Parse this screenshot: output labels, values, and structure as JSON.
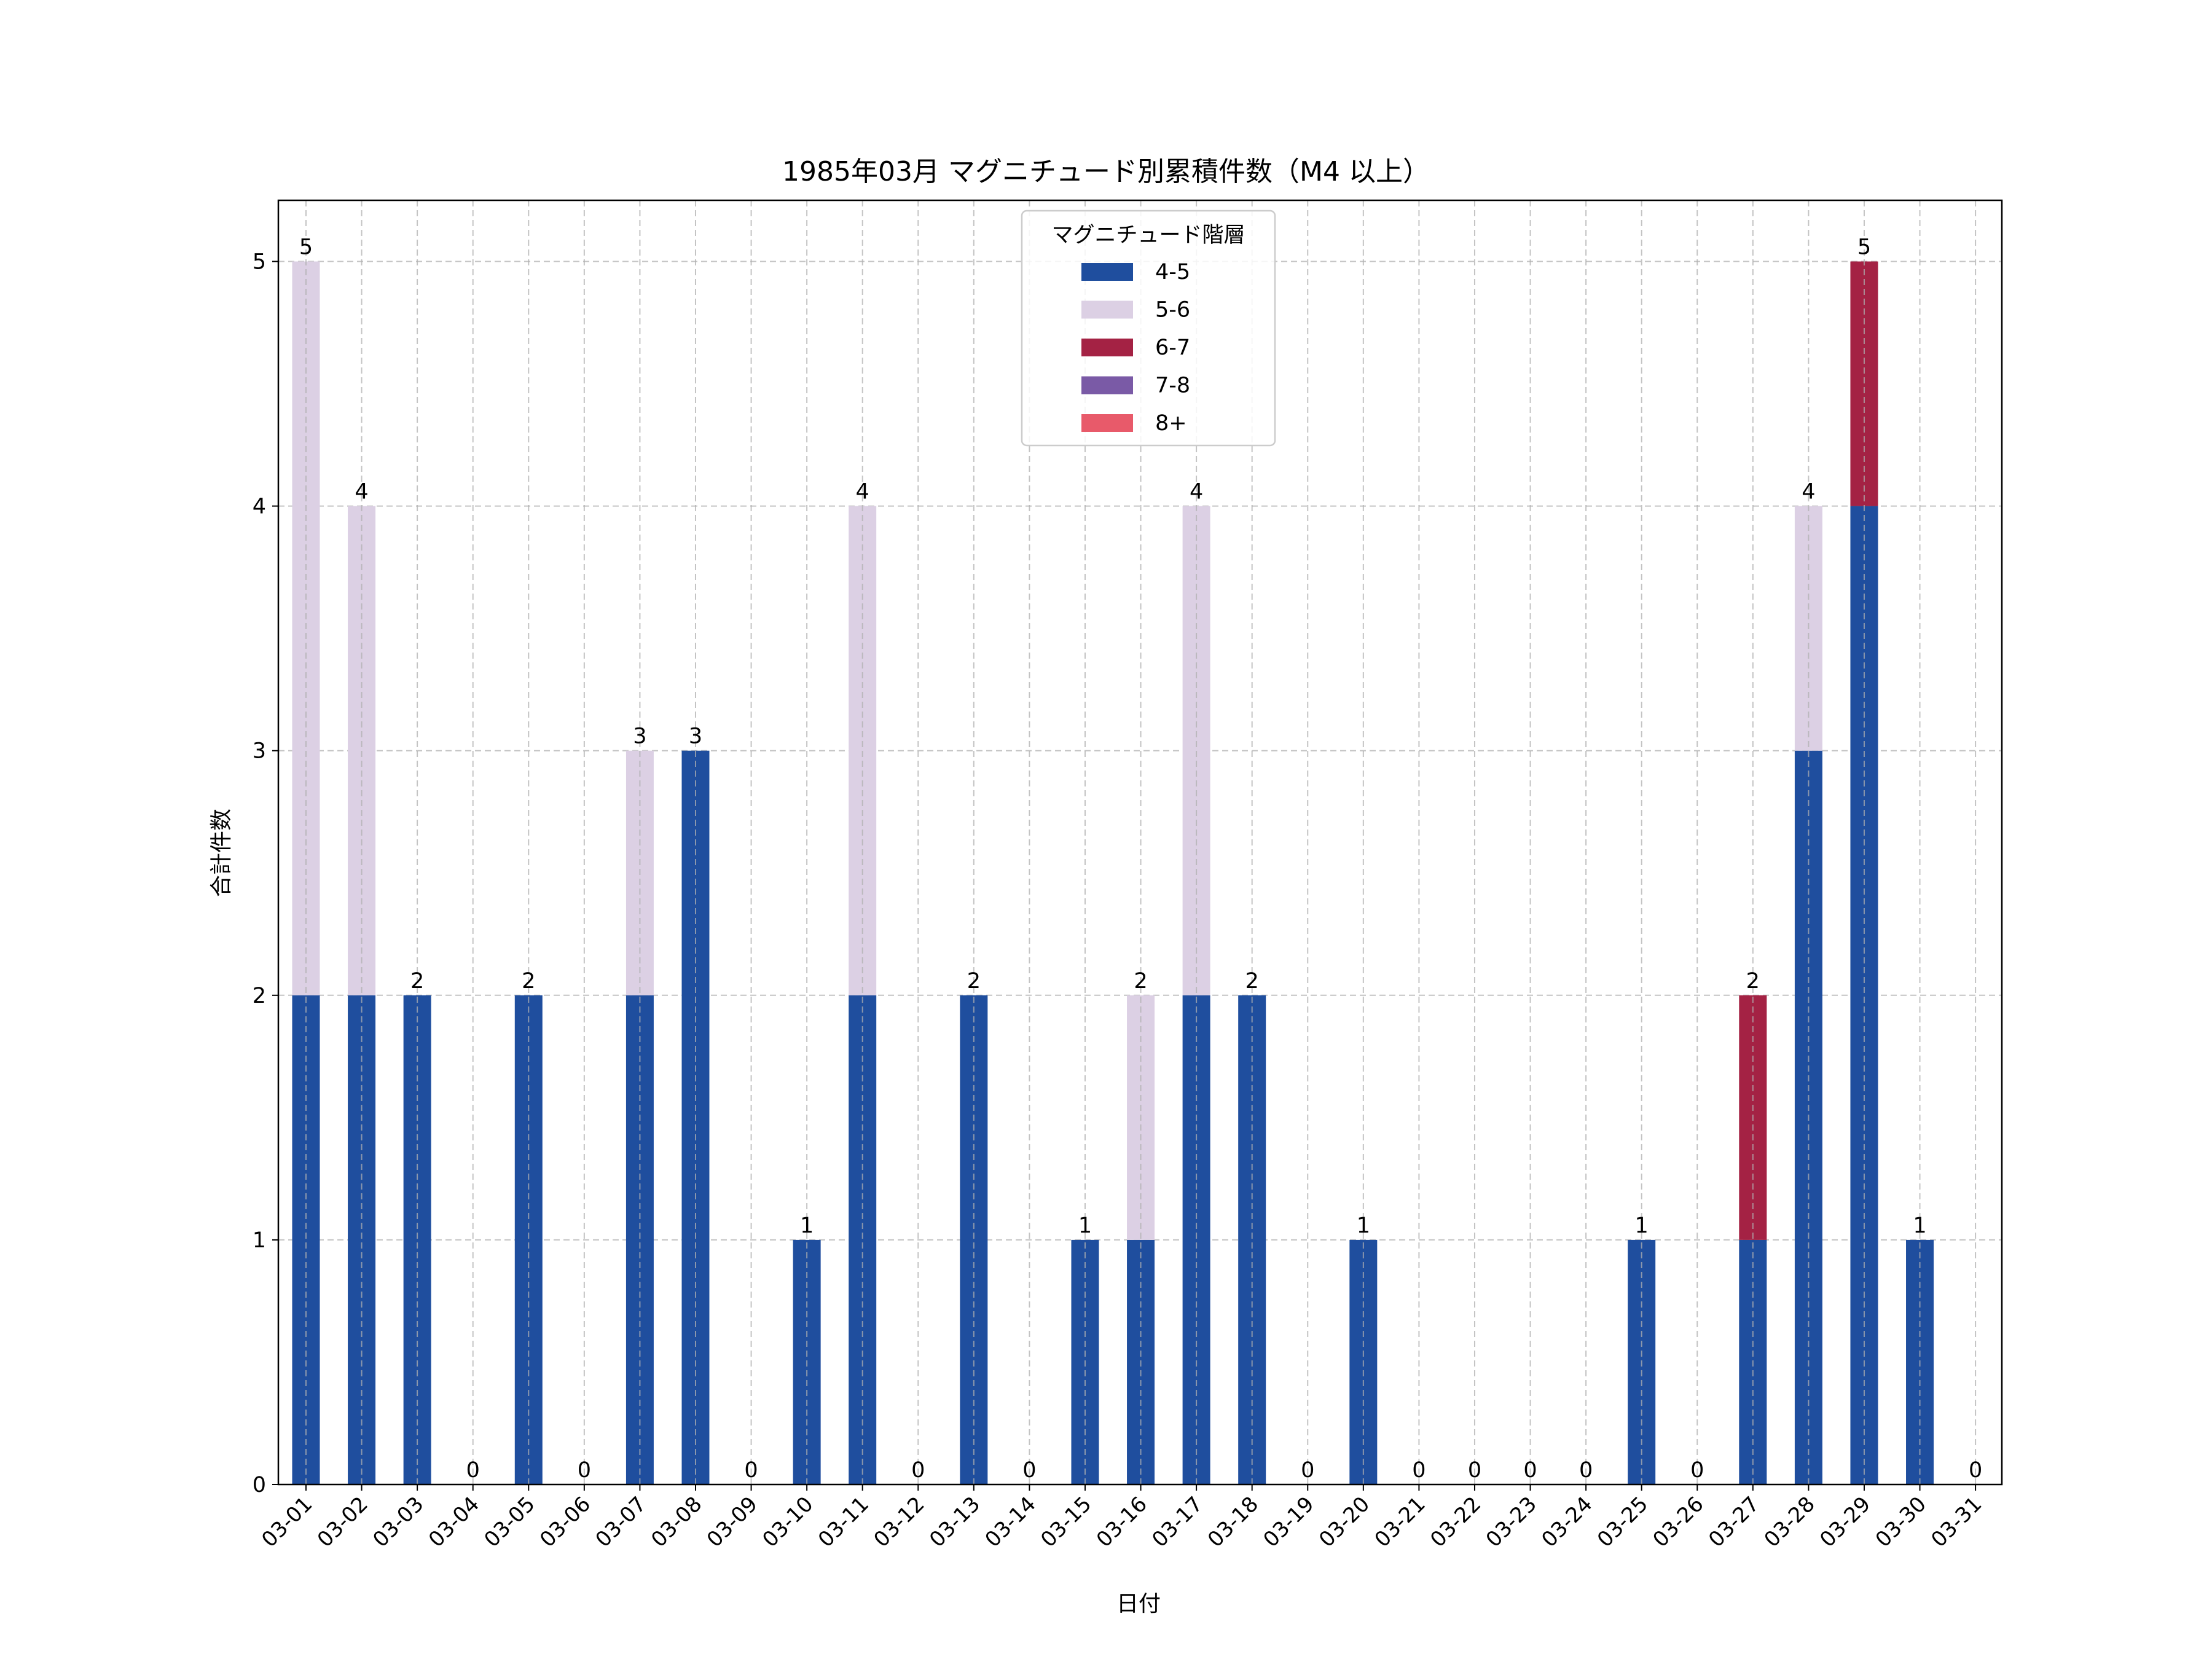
{
  "chart_data": {
    "type": "bar",
    "stacked": true,
    "title": "1985年03月 マグニチュード別累積件数（M4 以上）",
    "xlabel": "日付",
    "ylabel": "合計件数",
    "ylim": [
      0,
      5.25
    ],
    "yticks": [
      0,
      1,
      2,
      3,
      4,
      5
    ],
    "grid": true,
    "legend": {
      "title": "マグニチュード階層",
      "placement": "upper-center"
    },
    "categories": [
      "03-01",
      "03-02",
      "03-03",
      "03-04",
      "03-05",
      "03-06",
      "03-07",
      "03-08",
      "03-09",
      "03-10",
      "03-11",
      "03-12",
      "03-13",
      "03-14",
      "03-15",
      "03-16",
      "03-17",
      "03-18",
      "03-19",
      "03-20",
      "03-21",
      "03-22",
      "03-23",
      "03-24",
      "03-25",
      "03-26",
      "03-27",
      "03-28",
      "03-29",
      "03-30",
      "03-31"
    ],
    "series": [
      {
        "name": "4-5",
        "color": "#1f4e9e",
        "values": [
          2,
          2,
          2,
          0,
          2,
          0,
          2,
          3,
          0,
          1,
          2,
          0,
          2,
          0,
          1,
          1,
          2,
          2,
          0,
          1,
          0,
          0,
          0,
          0,
          1,
          0,
          1,
          3,
          4,
          1,
          0
        ]
      },
      {
        "name": "5-6",
        "color": "#dcd0e4",
        "values": [
          3,
          2,
          0,
          0,
          0,
          0,
          1,
          0,
          0,
          0,
          2,
          0,
          0,
          0,
          0,
          1,
          2,
          0,
          0,
          0,
          0,
          0,
          0,
          0,
          0,
          0,
          0,
          1,
          0,
          0,
          0
        ]
      },
      {
        "name": "6-7",
        "color": "#a42244",
        "values": [
          0,
          0,
          0,
          0,
          0,
          0,
          0,
          0,
          0,
          0,
          0,
          0,
          0,
          0,
          0,
          0,
          0,
          0,
          0,
          0,
          0,
          0,
          0,
          0,
          0,
          0,
          1,
          0,
          1,
          0,
          0
        ]
      },
      {
        "name": "7-8",
        "color": "#7a5aa6",
        "values": [
          0,
          0,
          0,
          0,
          0,
          0,
          0,
          0,
          0,
          0,
          0,
          0,
          0,
          0,
          0,
          0,
          0,
          0,
          0,
          0,
          0,
          0,
          0,
          0,
          0,
          0,
          0,
          0,
          0,
          0,
          0
        ]
      },
      {
        "name": "8+",
        "color": "#e85a6a",
        "values": [
          0,
          0,
          0,
          0,
          0,
          0,
          0,
          0,
          0,
          0,
          0,
          0,
          0,
          0,
          0,
          0,
          0,
          0,
          0,
          0,
          0,
          0,
          0,
          0,
          0,
          0,
          0,
          0,
          0,
          0,
          0
        ]
      }
    ],
    "totals": [
      5,
      4,
      2,
      0,
      2,
      0,
      3,
      3,
      0,
      1,
      4,
      0,
      2,
      0,
      1,
      2,
      4,
      2,
      0,
      1,
      0,
      0,
      0,
      0,
      1,
      0,
      2,
      4,
      5,
      1,
      0
    ]
  }
}
